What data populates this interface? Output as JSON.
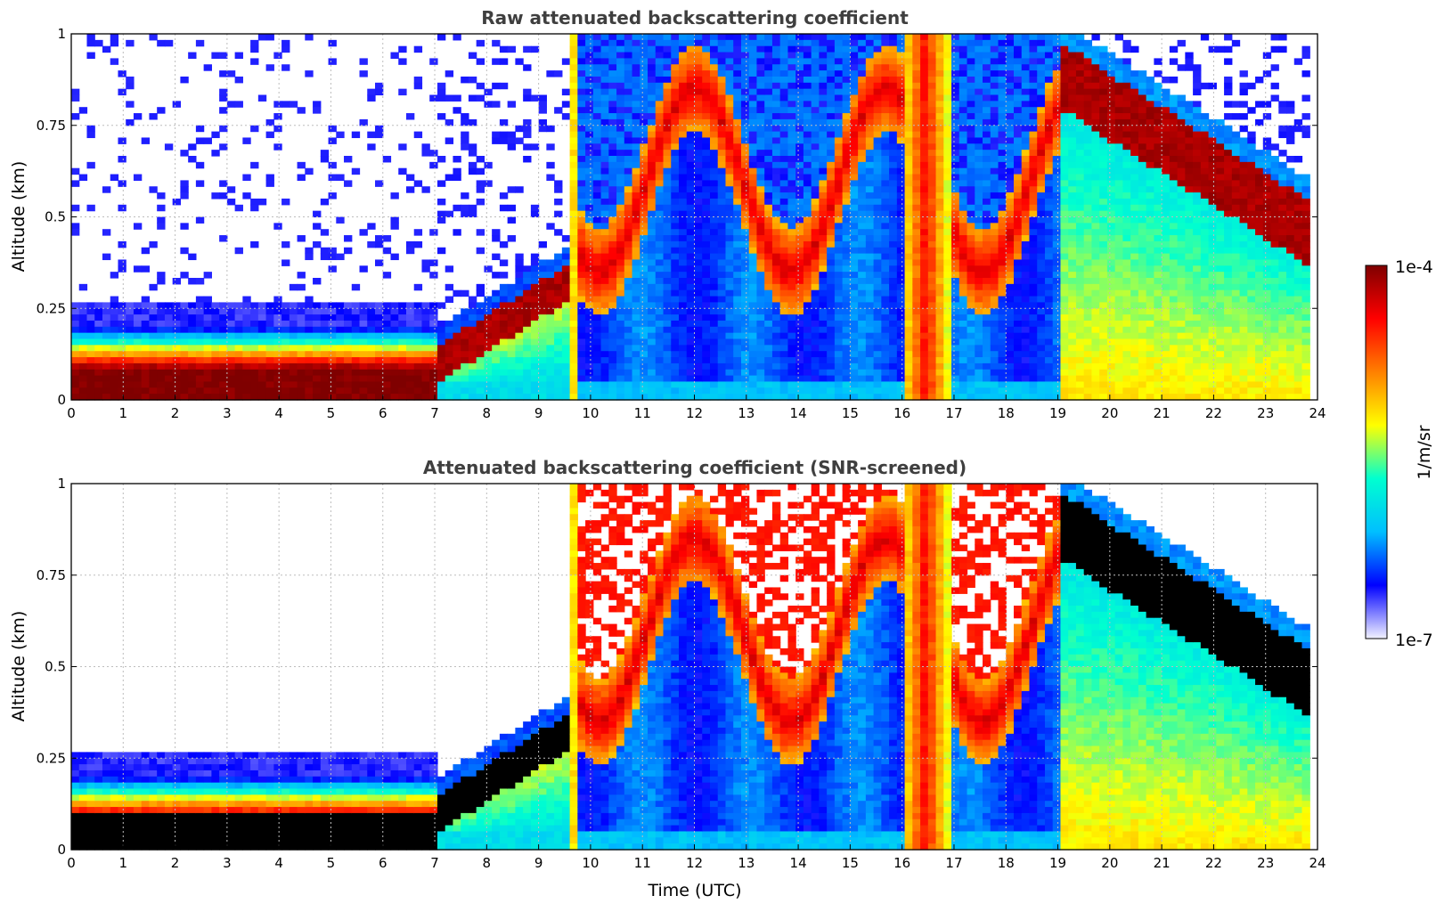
{
  "chart_data": [
    {
      "type": "heatmap",
      "title": "Raw attenuated backscattering coefficient",
      "xlabel": "",
      "ylabel": "Altitude (km)",
      "xlim": [
        0,
        24
      ],
      "ylim": [
        0,
        1
      ],
      "xticks": [
        "0",
        "1",
        "2",
        "3",
        "4",
        "5",
        "6",
        "7",
        "8",
        "9",
        "10",
        "11",
        "12",
        "13",
        "14",
        "15",
        "16",
        "17",
        "18",
        "19",
        "20",
        "21",
        "22",
        "23",
        "24"
      ],
      "yticks": [
        "0",
        "0.25",
        "0.5",
        "0.75",
        "1"
      ],
      "screened": false,
      "features": [
        {
          "name": "boundary layer core",
          "start_h": 0,
          "end_h": 7,
          "top_km": 0.09,
          "level": 1.0
        },
        {
          "name": "aerosol layer",
          "start_h": 7,
          "end_h": 9.8,
          "top_km": 0.35,
          "level": 0.95
        },
        {
          "name": "fog band",
          "start_h": 16.0,
          "end_h": 16.9,
          "top_km": 1.0,
          "level": 0.8
        },
        {
          "name": "evening layer",
          "start_h": 19.0,
          "end_h": 23.8,
          "top_km": 0.55,
          "level": 0.95
        }
      ]
    },
    {
      "type": "heatmap",
      "title": "Attenuated backscattering coefficient (SNR-screened)",
      "xlabel": "Time (UTC)",
      "ylabel": "Altitude (km)",
      "xlim": [
        0,
        24
      ],
      "ylim": [
        0,
        1
      ],
      "xticks": [
        "0",
        "1",
        "2",
        "3",
        "4",
        "5",
        "6",
        "7",
        "8",
        "9",
        "10",
        "11",
        "12",
        "13",
        "14",
        "15",
        "16",
        "17",
        "18",
        "19",
        "20",
        "21",
        "22",
        "23",
        "24"
      ],
      "yticks": [
        "0",
        "0.25",
        "0.5",
        "0.75",
        "1"
      ],
      "screened": true,
      "features": [
        {
          "name": "boundary layer core",
          "start_h": 0,
          "end_h": 7,
          "top_km": 0.09,
          "level": 1.0
        },
        {
          "name": "aerosol layer",
          "start_h": 7,
          "end_h": 9.8,
          "top_km": 0.35,
          "level": 0.95
        },
        {
          "name": "fog band",
          "start_h": 16.0,
          "end_h": 16.9,
          "top_km": 1.0,
          "level": 0.8
        },
        {
          "name": "evening layer",
          "start_h": 19.0,
          "end_h": 23.8,
          "top_km": 0.55,
          "level": 0.95
        }
      ]
    }
  ],
  "colorbar": {
    "max_label": "1e-4",
    "min_label": "1e-7",
    "unit_label": "1/m/sr",
    "stops": [
      "#f2f2ff",
      "#0000ff",
      "#00bfff",
      "#00ffd0",
      "#ffff00",
      "#ff8000",
      "#ff0000",
      "#7f0000"
    ]
  }
}
